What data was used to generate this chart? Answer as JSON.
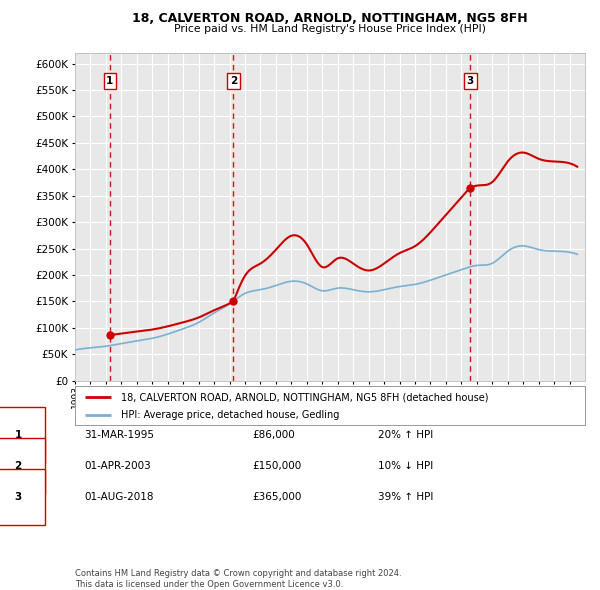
{
  "title": "18, CALVERTON ROAD, ARNOLD, NOTTINGHAM, NG5 8FH",
  "subtitle": "Price paid vs. HM Land Registry's House Price Index (HPI)",
  "legend_property": "18, CALVERTON ROAD, ARNOLD, NOTTINGHAM, NG5 8FH (detached house)",
  "legend_hpi": "HPI: Average price, detached house, Gedling",
  "footnote": "Contains HM Land Registry data © Crown copyright and database right 2024.\nThis data is licensed under the Open Government Licence v3.0.",
  "transactions": [
    {
      "num": 1,
      "date": 1995.25,
      "price": 86000,
      "label": "31-MAR-1995",
      "price_label": "£86,000",
      "hpi_label": "20% ↑ HPI"
    },
    {
      "num": 2,
      "date": 2003.25,
      "price": 150000,
      "label": "01-APR-2003",
      "price_label": "£150,000",
      "hpi_label": "10% ↓ HPI"
    },
    {
      "num": 3,
      "date": 2018.58,
      "price": 365000,
      "label": "01-AUG-2018",
      "price_label": "£365,000",
      "hpi_label": "39% ↑ HPI"
    }
  ],
  "ylim": [
    0,
    620000
  ],
  "yticks": [
    0,
    50000,
    100000,
    150000,
    200000,
    250000,
    300000,
    350000,
    400000,
    450000,
    500000,
    550000,
    600000
  ],
  "xlim": [
    1993,
    2026
  ],
  "property_color": "#cc0000",
  "hpi_color": "#7ab0d4",
  "background_color": "#e8e8e8",
  "grid_color": "#ffffff",
  "dashed_color": "#cc0000",
  "hpi_data_x": [
    1993,
    1994,
    1995,
    1996,
    1997,
    1998,
    1999,
    2000,
    2001,
    2002,
    2003,
    2004,
    2005,
    2006,
    2007,
    2008,
    2009,
    2010,
    2011,
    2012,
    2013,
    2014,
    2015,
    2016,
    2017,
    2018,
    2019,
    2020,
    2021,
    2022,
    2023,
    2024,
    2025
  ],
  "hpi_data_y": [
    58000,
    62000,
    65000,
    70000,
    75000,
    80000,
    88000,
    98000,
    110000,
    128000,
    145000,
    165000,
    172000,
    180000,
    188000,
    183000,
    170000,
    175000,
    172000,
    168000,
    172000,
    178000,
    182000,
    190000,
    200000,
    210000,
    218000,
    222000,
    245000,
    255000,
    248000,
    245000,
    243000
  ]
}
